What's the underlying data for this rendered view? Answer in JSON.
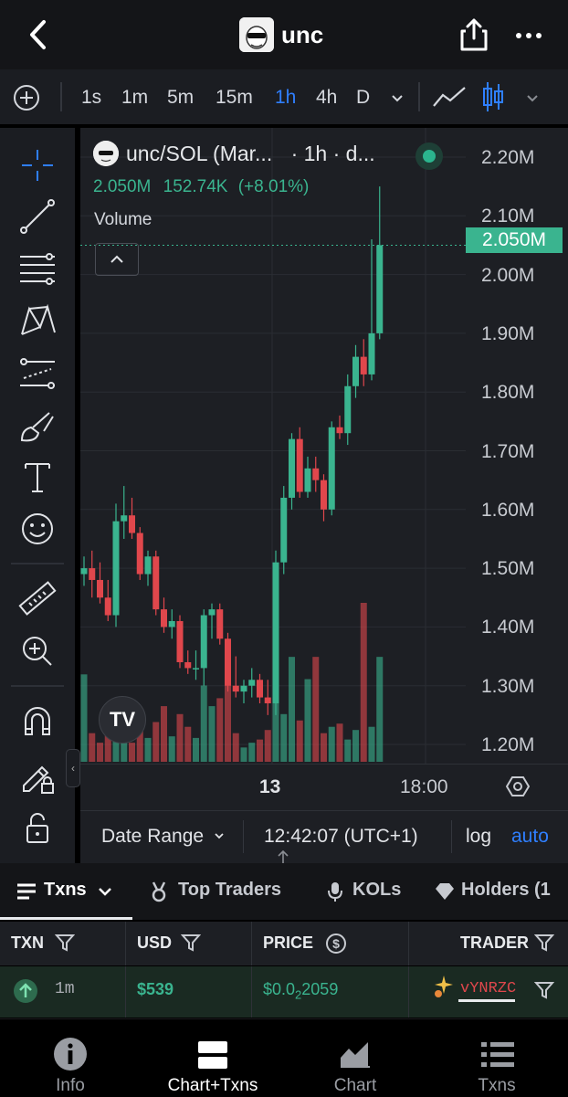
{
  "header": {
    "token_name": "unc",
    "icons": [
      "back-icon",
      "share-icon",
      "more-icon"
    ]
  },
  "toolbar": {
    "timeframes": [
      "1s",
      "1m",
      "5m",
      "15m",
      "1h",
      "4h",
      "D"
    ],
    "active_timeframe": "1h",
    "accent": "#2f7fff"
  },
  "chart": {
    "legend_title": "unc/SOL (Mar...",
    "legend_interval": "· 1h · d...",
    "legend_open": "2.050M",
    "legend_volume": "152.74K",
    "legend_change": "(+8.01%)",
    "volume_label": "Volume",
    "current_price_tag": "2.050M",
    "y_ticks": [
      "2.20M",
      "2.10M",
      "2.00M",
      "1.90M",
      "1.80M",
      "1.70M",
      "1.60M",
      "1.50M",
      "1.40M",
      "1.30M",
      "1.20M"
    ],
    "x_ticks": [
      "13",
      "18:00"
    ],
    "date_range_label": "Date Range",
    "clock": "12:42:07 (UTC+1)",
    "log_label": "log",
    "auto_label": "auto",
    "tv_logo": "TV",
    "up_color": "#3ab48f",
    "down_color": "#e0474c"
  },
  "chart_data": {
    "type": "candlestick",
    "ylim": [
      1.16,
      2.25
    ],
    "candles": [
      {
        "o": 1.49,
        "h": 1.52,
        "l": 1.47,
        "c": 1.5
      },
      {
        "o": 1.5,
        "h": 1.53,
        "l": 1.45,
        "c": 1.48
      },
      {
        "o": 1.48,
        "h": 1.51,
        "l": 1.44,
        "c": 1.45
      },
      {
        "o": 1.45,
        "h": 1.48,
        "l": 1.41,
        "c": 1.42
      },
      {
        "o": 1.42,
        "h": 1.61,
        "l": 1.4,
        "c": 1.58
      },
      {
        "o": 1.58,
        "h": 1.64,
        "l": 1.55,
        "c": 1.59
      },
      {
        "o": 1.59,
        "h": 1.62,
        "l": 1.55,
        "c": 1.56
      },
      {
        "o": 1.56,
        "h": 1.57,
        "l": 1.48,
        "c": 1.49
      },
      {
        "o": 1.49,
        "h": 1.53,
        "l": 1.47,
        "c": 1.52
      },
      {
        "o": 1.52,
        "h": 1.53,
        "l": 1.42,
        "c": 1.43
      },
      {
        "o": 1.43,
        "h": 1.45,
        "l": 1.39,
        "c": 1.4
      },
      {
        "o": 1.4,
        "h": 1.43,
        "l": 1.38,
        "c": 1.41
      },
      {
        "o": 1.41,
        "h": 1.42,
        "l": 1.33,
        "c": 1.34
      },
      {
        "o": 1.34,
        "h": 1.36,
        "l": 1.32,
        "c": 1.33
      },
      {
        "o": 1.33,
        "h": 1.36,
        "l": 1.31,
        "c": 1.33
      },
      {
        "o": 1.33,
        "h": 1.43,
        "l": 1.3,
        "c": 1.42
      },
      {
        "o": 1.42,
        "h": 1.44,
        "l": 1.38,
        "c": 1.43
      },
      {
        "o": 1.43,
        "h": 1.44,
        "l": 1.37,
        "c": 1.38
      },
      {
        "o": 1.38,
        "h": 1.39,
        "l": 1.29,
        "c": 1.3
      },
      {
        "o": 1.3,
        "h": 1.35,
        "l": 1.28,
        "c": 1.29
      },
      {
        "o": 1.29,
        "h": 1.31,
        "l": 1.27,
        "c": 1.3
      },
      {
        "o": 1.3,
        "h": 1.33,
        "l": 1.28,
        "c": 1.31
      },
      {
        "o": 1.31,
        "h": 1.32,
        "l": 1.27,
        "c": 1.28
      },
      {
        "o": 1.28,
        "h": 1.31,
        "l": 1.25,
        "c": 1.27
      },
      {
        "o": 1.27,
        "h": 1.53,
        "l": 1.25,
        "c": 1.51
      },
      {
        "o": 1.51,
        "h": 1.64,
        "l": 1.49,
        "c": 1.62
      },
      {
        "o": 1.62,
        "h": 1.73,
        "l": 1.6,
        "c": 1.72
      },
      {
        "o": 1.72,
        "h": 1.74,
        "l": 1.62,
        "c": 1.63
      },
      {
        "o": 1.63,
        "h": 1.69,
        "l": 1.62,
        "c": 1.67
      },
      {
        "o": 1.67,
        "h": 1.69,
        "l": 1.63,
        "c": 1.65
      },
      {
        "o": 1.65,
        "h": 1.66,
        "l": 1.58,
        "c": 1.6
      },
      {
        "o": 1.6,
        "h": 1.75,
        "l": 1.59,
        "c": 1.74
      },
      {
        "o": 1.74,
        "h": 1.76,
        "l": 1.72,
        "c": 1.73
      },
      {
        "o": 1.73,
        "h": 1.83,
        "l": 1.71,
        "c": 1.81
      },
      {
        "o": 1.81,
        "h": 1.88,
        "l": 1.79,
        "c": 1.86
      },
      {
        "o": 1.86,
        "h": 1.89,
        "l": 1.81,
        "c": 1.83
      },
      {
        "o": 1.83,
        "h": 2.06,
        "l": 1.82,
        "c": 1.9
      },
      {
        "o": 1.9,
        "h": 2.15,
        "l": 1.89,
        "c": 2.05
      }
    ],
    "volume": [
      0.55,
      0.18,
      0.12,
      0.36,
      0.22,
      0.18,
      0.12,
      0.21,
      0.15,
      0.25,
      0.35,
      0.16,
      0.3,
      0.22,
      0.15,
      0.48,
      0.35,
      0.4,
      0.55,
      0.18,
      0.09,
      0.12,
      0.14,
      0.2,
      0.55,
      0.3,
      0.66,
      0.26,
      0.52,
      0.66,
      0.18,
      0.22,
      0.24,
      0.14,
      0.2,
      1.0,
      0.22,
      0.66
    ]
  },
  "tabs": {
    "items": [
      "Txns",
      "Top Traders",
      "KOLs",
      "Holders (1"
    ]
  },
  "table": {
    "headers": [
      "TXN",
      "USD",
      "PRICE",
      "TRADER"
    ],
    "row": {
      "age": "1m",
      "usd": "$539",
      "price_prefix": "$0.0",
      "price_sub": "2",
      "price_rest": "2059",
      "trader": "vYNRZC"
    }
  },
  "nav": {
    "items": [
      "Info",
      "Chart+Txns",
      "Chart",
      "Txns"
    ],
    "active": "Chart+Txns"
  }
}
